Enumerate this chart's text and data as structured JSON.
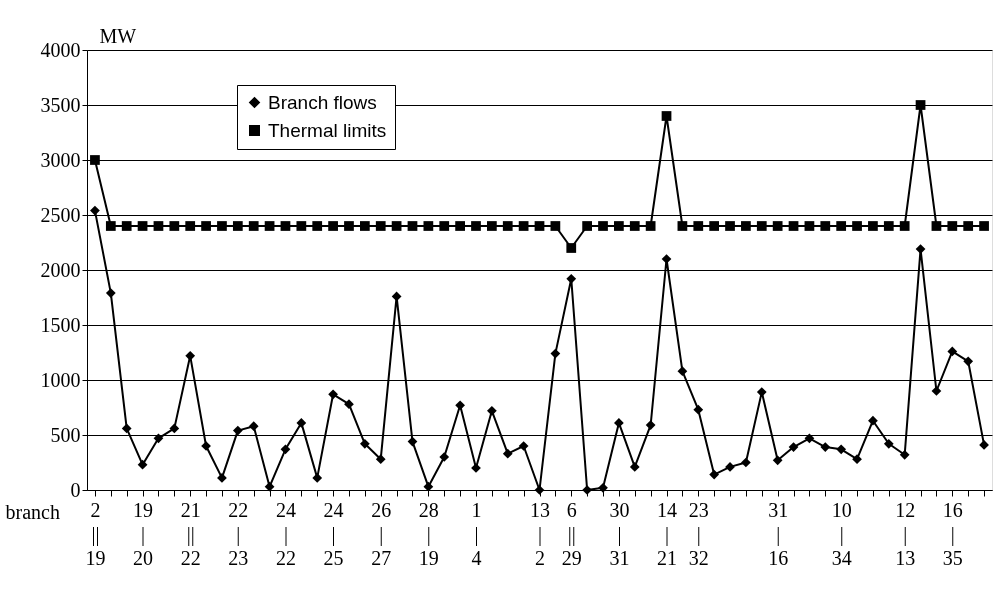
{
  "chart_data": {
    "type": "line",
    "categories": [
      "2\n||\n19",
      null,
      null,
      "19\n|\n20",
      null,
      null,
      "21\n||\n22",
      null,
      null,
      "22\n|\n23",
      null,
      null,
      "24\n|\n22",
      null,
      null,
      "24\n|\n25",
      null,
      null,
      "26\n|\n27",
      null,
      null,
      "28\n|\n19",
      null,
      null,
      "1\n|\n4",
      null,
      null,
      null,
      "13\n|\n2",
      null,
      "6\n||\n29",
      null,
      null,
      "30\n|\n31",
      null,
      null,
      "14\n|\n21",
      null,
      "23\n|\n32",
      null,
      null,
      null,
      null,
      "31\n|\n16",
      null,
      null,
      null,
      "10\n|\n34",
      null,
      null,
      null,
      "12\n|\n13",
      null,
      null,
      "16\n|\n35",
      null,
      null
    ],
    "series": [
      {
        "name": "Branch flows",
        "color": "#000000",
        "marker": "diamond",
        "values": [
          2540,
          1790,
          560,
          230,
          470,
          560,
          1220,
          400,
          110,
          540,
          580,
          30,
          370,
          610,
          110,
          870,
          780,
          420,
          280,
          1760,
          440,
          30,
          300,
          770,
          200,
          720,
          330,
          400,
          0,
          1240,
          1920,
          0,
          20,
          610,
          210,
          590,
          2100,
          1080,
          730,
          140,
          210,
          250,
          890,
          270,
          390,
          470,
          390,
          370,
          280,
          630,
          420,
          320,
          2190,
          900,
          1260,
          1170,
          410
        ]
      },
      {
        "name": "Thermal limits",
        "color": "#000000",
        "marker": "square",
        "values": [
          3000,
          2400,
          2400,
          2400,
          2400,
          2400,
          2400,
          2400,
          2400,
          2400,
          2400,
          2400,
          2400,
          2400,
          2400,
          2400,
          2400,
          2400,
          2400,
          2400,
          2400,
          2400,
          2400,
          2400,
          2400,
          2400,
          2400,
          2400,
          2400,
          2400,
          2200,
          2400,
          2400,
          2400,
          2400,
          2400,
          3400,
          2400,
          2400,
          2400,
          2400,
          2400,
          2400,
          2400,
          2400,
          2400,
          2400,
          2400,
          2400,
          2400,
          2400,
          2400,
          3500,
          2400,
          2400,
          2400,
          2400
        ]
      }
    ],
    "xlabel": "branch",
    "ylabel": "MW",
    "ylim": [
      0,
      4000
    ],
    "yticks": [
      0,
      500,
      1000,
      1500,
      2000,
      2500,
      3000,
      3500,
      4000
    ],
    "grid": "y",
    "legend": "top left",
    "line_style": "solid"
  }
}
